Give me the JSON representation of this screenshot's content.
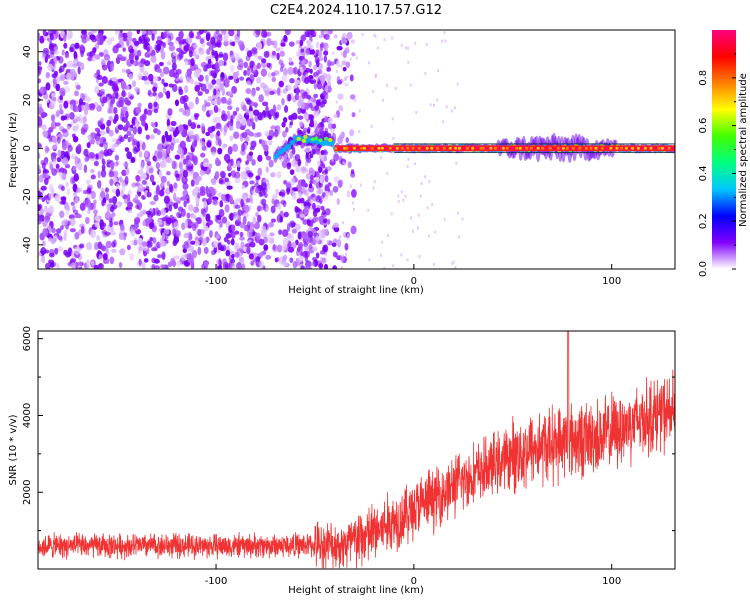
{
  "figure": {
    "title": "C2E4.2024.110.17.57.G12"
  },
  "chart_data": [
    {
      "type": "heatmap",
      "xlabel": "Height of straight line (km)",
      "ylabel": "Frequency (Hz)",
      "xlim": [
        -190,
        132
      ],
      "ylim": [
        -50,
        49
      ],
      "x_ticks": [
        -100,
        0,
        100
      ],
      "y_ticks": [
        -40,
        -20,
        0,
        20,
        40
      ],
      "colorbar": {
        "label": "Normalized spectral amplitude",
        "range": [
          0,
          1
        ],
        "ticks": [
          "0.0",
          "0.2",
          "0.4",
          "0.6",
          "0.8"
        ],
        "tick_values": [
          0,
          0.2,
          0.4,
          0.6,
          0.8
        ],
        "colormap": [
          "#ffffff",
          "#8000ff",
          "#0000ff",
          "#00c8ff",
          "#00ff80",
          "#40ff00",
          "#ffff00",
          "#ff8000",
          "#ff0000",
          "#ff0080"
        ]
      },
      "features": {
        "noise_region_x": [
          -190,
          -30
        ],
        "signal_band_x": [
          -70,
          132
        ],
        "signal_center_freq_hz": 0,
        "strong_burst_x": [
          42,
          102
        ]
      },
      "grid": false,
      "legend": "none"
    },
    {
      "type": "line",
      "xlabel": "Height of straight line (km)",
      "ylabel": "SNR (10 * v/v)",
      "xlim": [
        -190,
        132
      ],
      "ylim": [
        0,
        6200
      ],
      "x_ticks": [
        -100,
        0,
        100
      ],
      "y_ticks": [
        2000,
        4000,
        6000
      ],
      "color": "#f03232",
      "profile": {
        "x": [
          -190,
          -160,
          -130,
          -100,
          -70,
          -50,
          -35,
          -30,
          -20,
          -10,
          0,
          10,
          20,
          30,
          40,
          50,
          60,
          70,
          80,
          90,
          100,
          110,
          120,
          132
        ],
        "y": [
          600,
          600,
          610,
          600,
          610,
          620,
          620,
          700,
          950,
          1250,
          1550,
          1850,
          2150,
          2450,
          2700,
          2950,
          3150,
          3250,
          3350,
          3400,
          3550,
          3800,
          4000,
          4100
        ]
      },
      "spike": {
        "x": 78,
        "y": 6200
      },
      "grid": false,
      "legend": "none"
    }
  ]
}
